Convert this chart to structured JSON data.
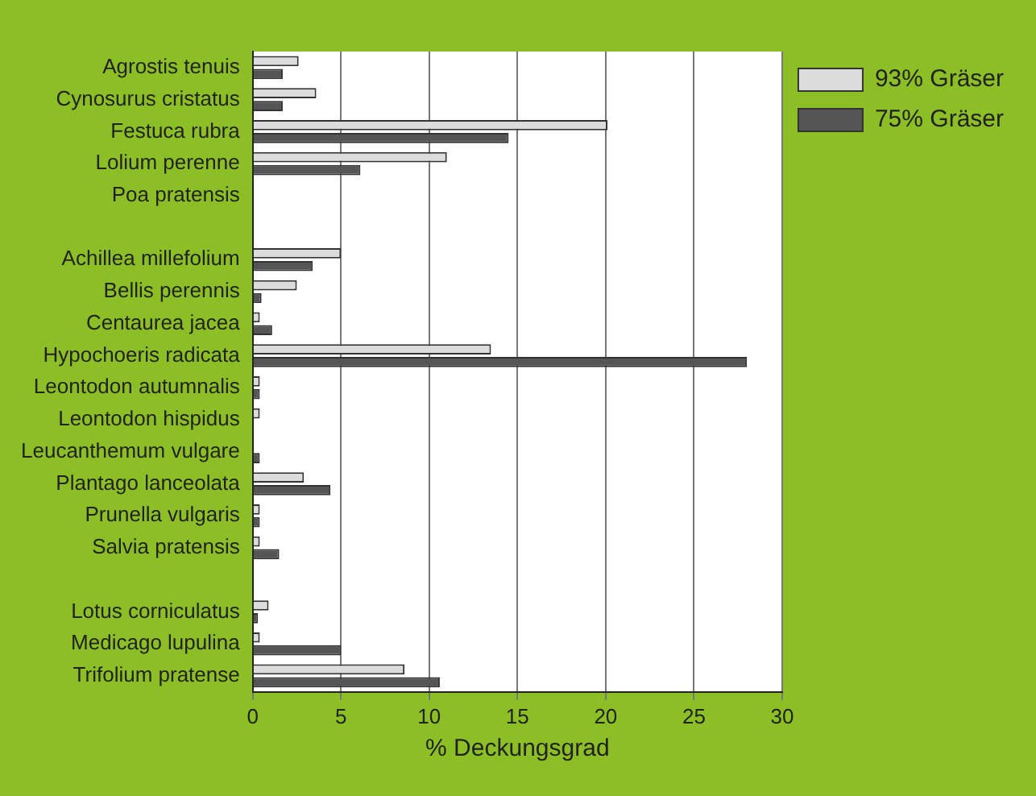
{
  "chart_data": {
    "type": "bar",
    "orientation": "horizontal",
    "xlabel": "% Deckungsgrad",
    "categories": [
      "Agrostis tenuis",
      "Cynosurus cristatus",
      "Festuca rubra",
      "Lolium perenne",
      "Poa pratensis",
      null,
      "Achillea millefolium",
      "Bellis perennis",
      "Centaurea jacea",
      "Hypochoeris radicata",
      "Leontodon autumnalis",
      "Leontodon hispidus",
      "Leucanthemum vulgare",
      "Plantago lanceolata",
      "Prunella vulgaris",
      "Salvia pratensis",
      null,
      "Lotus corniculatus",
      "Medicago lupulina",
      "Trifolium pratense"
    ],
    "series": [
      {
        "name": "93% Gräser",
        "color": "#dcdcdc",
        "values": [
          2.6,
          3.6,
          20.1,
          11.0,
          0,
          null,
          5.0,
          2.5,
          0.4,
          13.5,
          0.4,
          0.4,
          0,
          2.9,
          0.4,
          0.4,
          null,
          0.9,
          0.4,
          8.6
        ]
      },
      {
        "name": "75% Gräser",
        "color": "#555555",
        "values": [
          1.7,
          1.7,
          14.5,
          6.1,
          0,
          null,
          3.4,
          0.5,
          1.1,
          28,
          0.4,
          0,
          0.4,
          4.4,
          0.4,
          1.5,
          null,
          0.3,
          5.0,
          10.6
        ]
      }
    ],
    "xlim": [
      0,
      30
    ],
    "xticks": [
      0,
      5,
      10,
      15,
      20,
      25,
      30
    ],
    "grid": "x",
    "legend": "top right"
  }
}
